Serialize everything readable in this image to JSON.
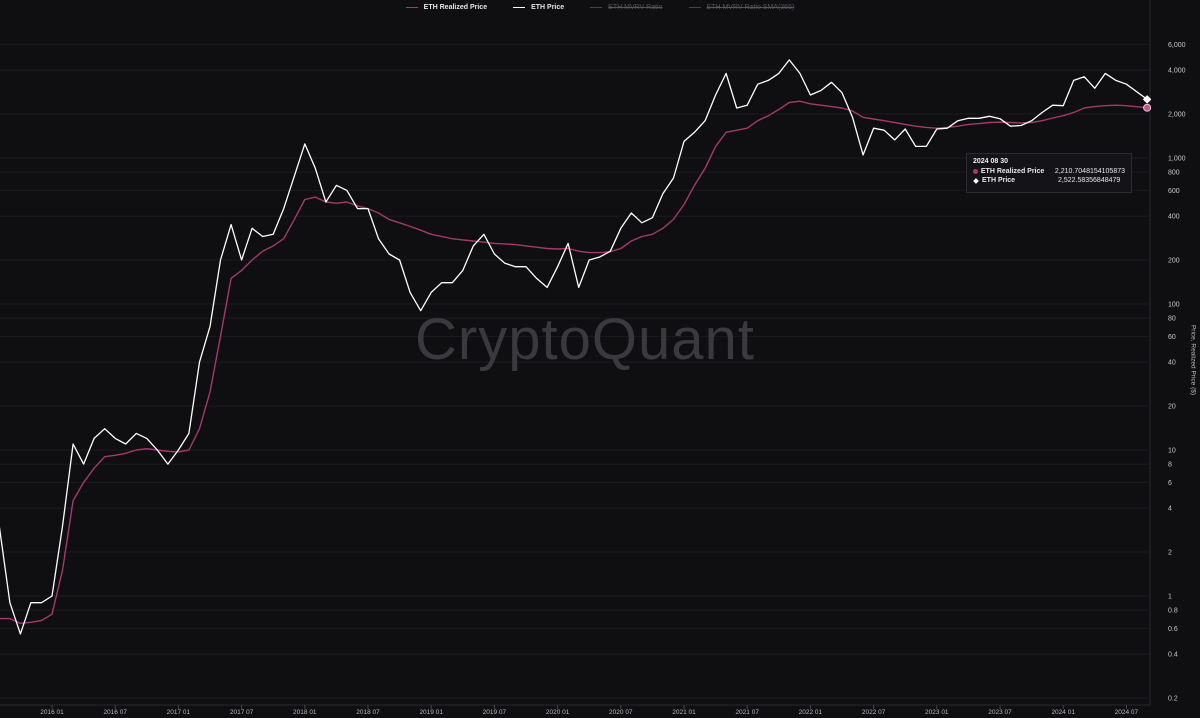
{
  "legend": [
    {
      "label": "ETH Realized Price",
      "color": "#a33a6a",
      "visible": true
    },
    {
      "label": "ETH Price",
      "color": "#ffffff",
      "visible": true
    },
    {
      "label": "ETH MVRV Ratio",
      "color": "#555560",
      "visible": false
    },
    {
      "label": "ETH MVRV Ratio SMA(365)",
      "color": "#555560",
      "visible": false
    }
  ],
  "watermark": "CryptoQuant",
  "tooltip": {
    "date": "2024 08 30",
    "rows": [
      {
        "label": "ETH Realized Price",
        "value": "2,210.7048154105873"
      },
      {
        "label": "ETH Price",
        "value": "2,522.58356848479"
      }
    ]
  },
  "chart_data": {
    "type": "line",
    "ylabel": "Price, Realized Price ($)",
    "yscale": "log",
    "ylim": [
      0.2,
      6000
    ],
    "xlim": [
      "2015-08",
      "2024-08-30"
    ],
    "grid": "horizontal",
    "legend_position": "top",
    "yticks": [
      {
        "v": 6000,
        "l": "6,000"
      },
      {
        "v": 4000,
        "l": "4,000"
      },
      {
        "v": 2000,
        "l": "2,000"
      },
      {
        "v": 1000,
        "l": "1,000"
      },
      {
        "v": 800,
        "l": "800"
      },
      {
        "v": 600,
        "l": "600"
      },
      {
        "v": 400,
        "l": "400"
      },
      {
        "v": 200,
        "l": "200"
      },
      {
        "v": 100,
        "l": "100"
      },
      {
        "v": 80,
        "l": "80"
      },
      {
        "v": 60,
        "l": "60"
      },
      {
        "v": 40,
        "l": "40"
      },
      {
        "v": 20,
        "l": "20"
      },
      {
        "v": 10,
        "l": "10"
      },
      {
        "v": 8,
        "l": "8"
      },
      {
        "v": 6,
        "l": "6"
      },
      {
        "v": 4,
        "l": "4"
      },
      {
        "v": 2,
        "l": "2"
      },
      {
        "v": 1,
        "l": "1"
      },
      {
        "v": 0.8,
        "l": "0.8"
      },
      {
        "v": 0.6,
        "l": "0.6"
      },
      {
        "v": 0.4,
        "l": "0.4"
      },
      {
        "v": 0.2,
        "l": "0.2"
      }
    ],
    "xticks": [
      "2016 01",
      "2016 07",
      "2017 01",
      "2017 07",
      "2018 01",
      "2018 07",
      "2019 01",
      "2019 07",
      "2020 01",
      "2020 07",
      "2021 01",
      "2021 07",
      "2022 01",
      "2022 07",
      "2023 01",
      "2023 07",
      "2024 01",
      "2024 07"
    ],
    "x": [
      "2015-08",
      "2015-09",
      "2015-10",
      "2015-11",
      "2015-12",
      "2016-01",
      "2016-02",
      "2016-03",
      "2016-04",
      "2016-05",
      "2016-06",
      "2016-07",
      "2016-08",
      "2016-09",
      "2016-10",
      "2016-11",
      "2016-12",
      "2017-01",
      "2017-02",
      "2017-03",
      "2017-04",
      "2017-05",
      "2017-06",
      "2017-07",
      "2017-08",
      "2017-09",
      "2017-10",
      "2017-11",
      "2017-12",
      "2018-01",
      "2018-02",
      "2018-03",
      "2018-04",
      "2018-05",
      "2018-06",
      "2018-07",
      "2018-08",
      "2018-09",
      "2018-10",
      "2018-11",
      "2018-12",
      "2019-01",
      "2019-02",
      "2019-03",
      "2019-04",
      "2019-05",
      "2019-06",
      "2019-07",
      "2019-08",
      "2019-09",
      "2019-10",
      "2019-11",
      "2019-12",
      "2020-01",
      "2020-02",
      "2020-03",
      "2020-04",
      "2020-05",
      "2020-06",
      "2020-07",
      "2020-08",
      "2020-09",
      "2020-10",
      "2020-11",
      "2020-12",
      "2021-01",
      "2021-02",
      "2021-03",
      "2021-04",
      "2021-05",
      "2021-06",
      "2021-07",
      "2021-08",
      "2021-09",
      "2021-10",
      "2021-11",
      "2021-12",
      "2022-01",
      "2022-02",
      "2022-03",
      "2022-04",
      "2022-05",
      "2022-06",
      "2022-07",
      "2022-08",
      "2022-09",
      "2022-10",
      "2022-11",
      "2022-12",
      "2023-01",
      "2023-02",
      "2023-03",
      "2023-04",
      "2023-05",
      "2023-06",
      "2023-07",
      "2023-08",
      "2023-09",
      "2023-10",
      "2023-11",
      "2023-12",
      "2024-01",
      "2024-02",
      "2024-03",
      "2024-04",
      "2024-05",
      "2024-06",
      "2024-07",
      "2024-08-30"
    ],
    "series": [
      {
        "name": "ETH Realized Price",
        "color": "#a33a6a",
        "values": [
          0.7,
          0.7,
          0.65,
          0.66,
          0.68,
          0.75,
          1.5,
          4.5,
          6,
          7.5,
          9,
          9.2,
          9.5,
          10,
          10.2,
          10,
          9.8,
          9.7,
          10,
          14,
          25,
          60,
          150,
          170,
          200,
          230,
          250,
          280,
          380,
          520,
          540,
          500,
          490,
          500,
          470,
          450,
          420,
          380,
          360,
          340,
          320,
          300,
          290,
          280,
          275,
          270,
          265,
          260,
          258,
          255,
          250,
          245,
          240,
          238,
          240,
          230,
          225,
          225,
          228,
          240,
          270,
          290,
          300,
          330,
          380,
          480,
          650,
          850,
          1200,
          1500,
          1550,
          1600,
          1800,
          1950,
          2150,
          2400,
          2450,
          2350,
          2300,
          2250,
          2200,
          2100,
          1900,
          1850,
          1800,
          1750,
          1700,
          1650,
          1620,
          1600,
          1620,
          1650,
          1700,
          1720,
          1750,
          1760,
          1750,
          1740,
          1750,
          1800,
          1880,
          1950,
          2050,
          2200,
          2250,
          2280,
          2300,
          2280,
          2210.7
        ]
      },
      {
        "name": "ETH Price",
        "color": "#ffffff",
        "values": [
          3,
          0.9,
          0.55,
          0.9,
          0.9,
          1.0,
          3,
          11,
          8,
          12,
          14,
          12,
          11,
          13,
          12,
          10,
          8,
          10,
          13,
          40,
          70,
          200,
          350,
          200,
          330,
          290,
          300,
          450,
          750,
          1250,
          850,
          500,
          650,
          600,
          450,
          450,
          280,
          220,
          200,
          120,
          90,
          120,
          140,
          140,
          170,
          250,
          300,
          220,
          190,
          180,
          180,
          150,
          130,
          180,
          260,
          130,
          200,
          210,
          230,
          330,
          420,
          360,
          390,
          570,
          730,
          1300,
          1500,
          1800,
          2700,
          3800,
          2200,
          2300,
          3200,
          3400,
          3800,
          4700,
          3800,
          2700,
          2900,
          3300,
          2800,
          1900,
          1050,
          1600,
          1550,
          1330,
          1580,
          1200,
          1200,
          1580,
          1600,
          1800,
          1870,
          1870,
          1930,
          1860,
          1650,
          1670,
          1800,
          2050,
          2300,
          2280,
          3400,
          3600,
          3000,
          3800,
          3400,
          3200,
          2522.58
        ]
      }
    ]
  }
}
